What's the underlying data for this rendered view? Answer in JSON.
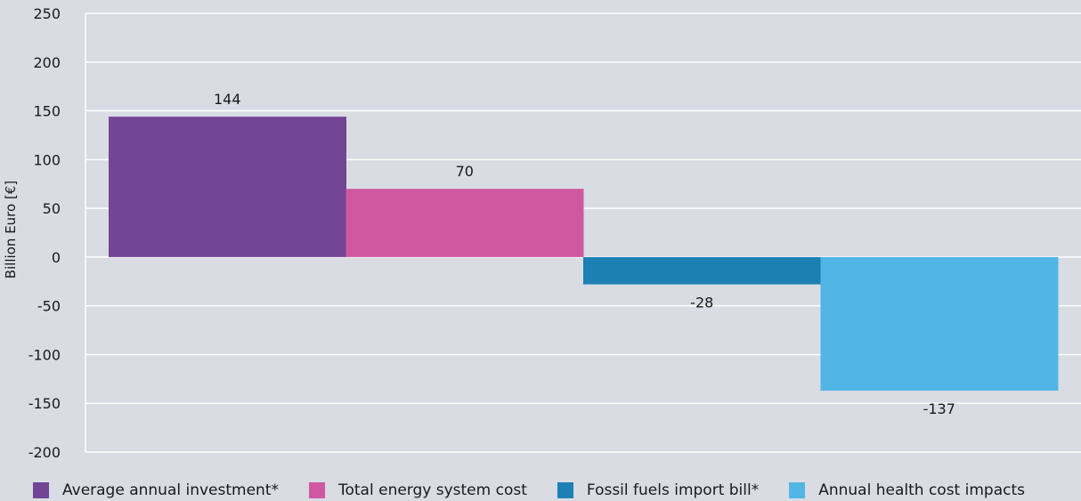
{
  "chart_data": {
    "type": "bar",
    "ylabel": "Billion Euro [€]",
    "xlabel": "",
    "ylim": [
      -200,
      250
    ],
    "yticks": [
      250,
      200,
      150,
      100,
      50,
      0,
      -50,
      -100,
      -150,
      -200
    ],
    "grid": true,
    "legend_position": "bottom",
    "categories": [
      "Average annual investment*",
      "Total energy system cost",
      "Fossil fuels import bill*",
      "Annual health cost impacts"
    ],
    "values": [
      144,
      70,
      -28,
      -137
    ],
    "colors": [
      "#734595",
      "#d058a2",
      "#1c80b5",
      "#51b6e6"
    ],
    "data_labels": [
      "144",
      "70",
      "-28",
      "-137"
    ]
  }
}
